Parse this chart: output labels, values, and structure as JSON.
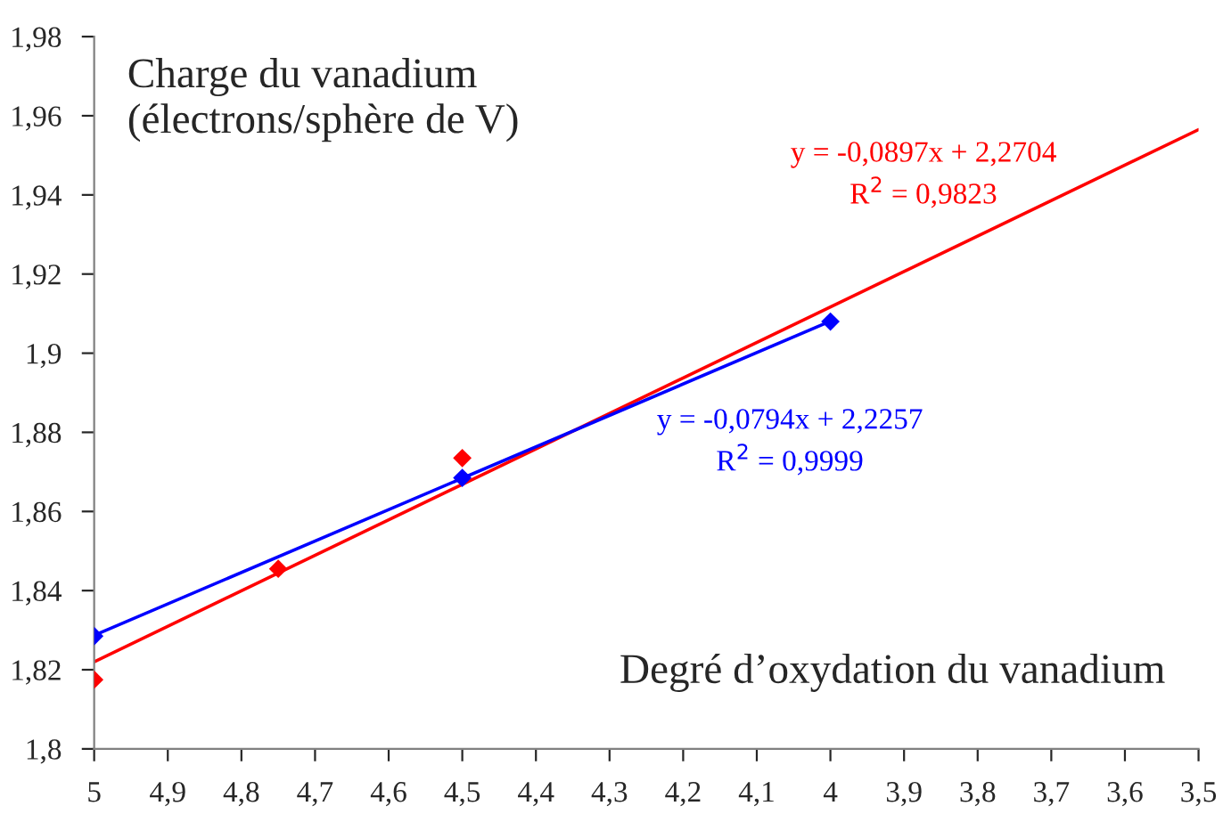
{
  "chart_data": {
    "type": "line",
    "xlabel": "Degré d’oxydation du vanadium",
    "ylabel": "Charge du vanadium\n(électrons/sphère de V)",
    "series": [
      {
        "color": "#ff0000",
        "x": [
          5,
          3.5
        ],
        "values": [
          1.822,
          1.9565
        ],
        "marker": "none"
      },
      {
        "color": "#0000ff",
        "x": [
          5,
          4
        ],
        "values": [
          1.8287,
          1.9081
        ],
        "marker": "none"
      },
      {
        "type": "scatter",
        "color": "#ff0000",
        "x": [
          5,
          4.75,
          4.5
        ],
        "values": [
          1.8175,
          1.8455,
          1.8735
        ],
        "marker": "diamond"
      },
      {
        "type": "scatter",
        "color": "#0000ff",
        "x": [
          5,
          4.5,
          4
        ],
        "values": [
          1.8285,
          1.8685,
          1.908
        ],
        "marker": "diamond"
      }
    ],
    "annotations": [
      "y = -0,0897x + 2,2704\nR$^{2}$ = 0,9823",
      "y = -0,0794x + 2,2257\nR$^{2}$ = 0,9999"
    ],
    "xlim": [
      5,
      3.5
    ],
    "xticks": [
      5,
      {
        "value": 4.9,
        "label": "4,9"
      },
      {
        "value": 4.8,
        "label": "4,8"
      },
      {
        "value": 4.7,
        "label": "4,7"
      },
      {
        "value": 4.6,
        "label": "4,6"
      },
      {
        "value": 4.5,
        "label": "4,5"
      },
      {
        "value": 4.4,
        "label": "4,4"
      },
      {
        "value": 4.3,
        "label": "4,3"
      },
      {
        "value": 4.2,
        "label": "4,2"
      },
      {
        "value": 4.1,
        "label": "4,1"
      },
      4,
      {
        "value": 3.9,
        "label": "3,9"
      },
      {
        "value": 3.8,
        "label": "3,8"
      },
      {
        "value": 3.7,
        "label": "3,7"
      },
      {
        "value": 3.6,
        "label": "3,6"
      },
      {
        "value": 3.5,
        "label": "3,5"
      }
    ],
    "ylim": [
      1.8,
      1.98
    ],
    "yticks": [
      {
        "value": 1.8,
        "label": "1,8"
      },
      {
        "value": 1.82,
        "label": "1,82"
      },
      {
        "value": 1.84,
        "label": "1,84"
      },
      {
        "value": 1.86,
        "label": "1,86"
      },
      {
        "value": 1.88,
        "label": "1,88"
      },
      {
        "value": 1.9,
        "label": "1,9"
      },
      {
        "value": 1.92,
        "label": "1,92"
      },
      {
        "value": 1.94,
        "label": "1,94"
      },
      {
        "value": 1.96,
        "label": "1,96"
      },
      {
        "value": 1.98,
        "label": "1,98"
      }
    ],
    "grid": false,
    "legend": false
  }
}
